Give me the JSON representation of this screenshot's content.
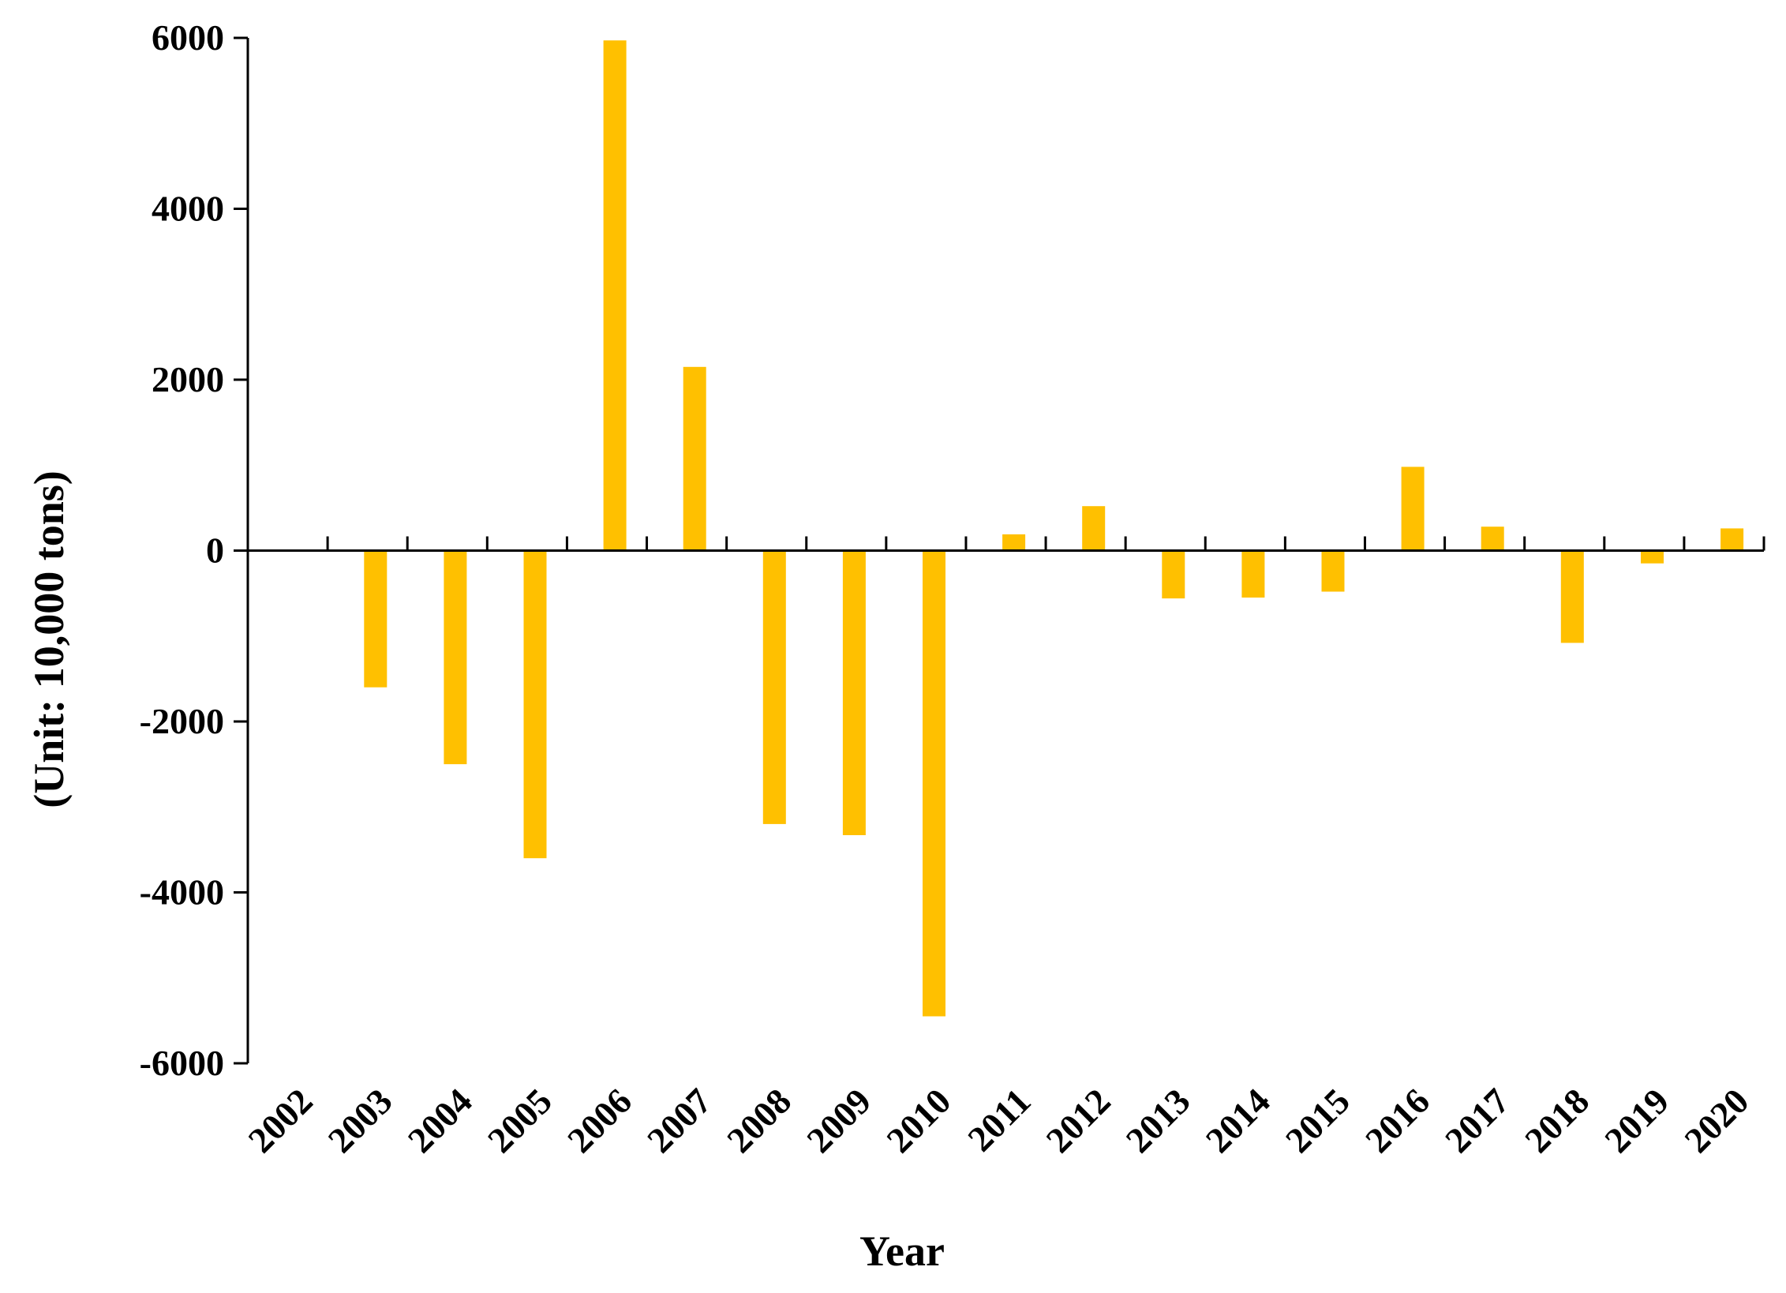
{
  "chart_data": {
    "type": "bar",
    "title": "",
    "xlabel": "Year",
    "ylabel": "(Unit: 10,000 tons)",
    "categories": [
      "2002",
      "2003",
      "2004",
      "2005",
      "2006",
      "2007",
      "2008",
      "2009",
      "2010",
      "2011",
      "2012",
      "2013",
      "2014",
      "2015",
      "2016",
      "2017",
      "2018",
      "2019",
      "2020"
    ],
    "values": [
      0,
      -1600,
      -2500,
      -3600,
      5970,
      2150,
      -3200,
      -3330,
      -5450,
      190,
      520,
      -560,
      -550,
      -480,
      980,
      280,
      -1080,
      -150,
      260
    ],
    "ylim": [
      -6000,
      6000
    ],
    "yticks": [
      "6000",
      "4000",
      "2000",
      "0",
      "-2000",
      "-4000",
      "-6000"
    ],
    "grid": false,
    "legend": "none",
    "bar_color": "#FFC000",
    "axis_color": "#000000"
  }
}
